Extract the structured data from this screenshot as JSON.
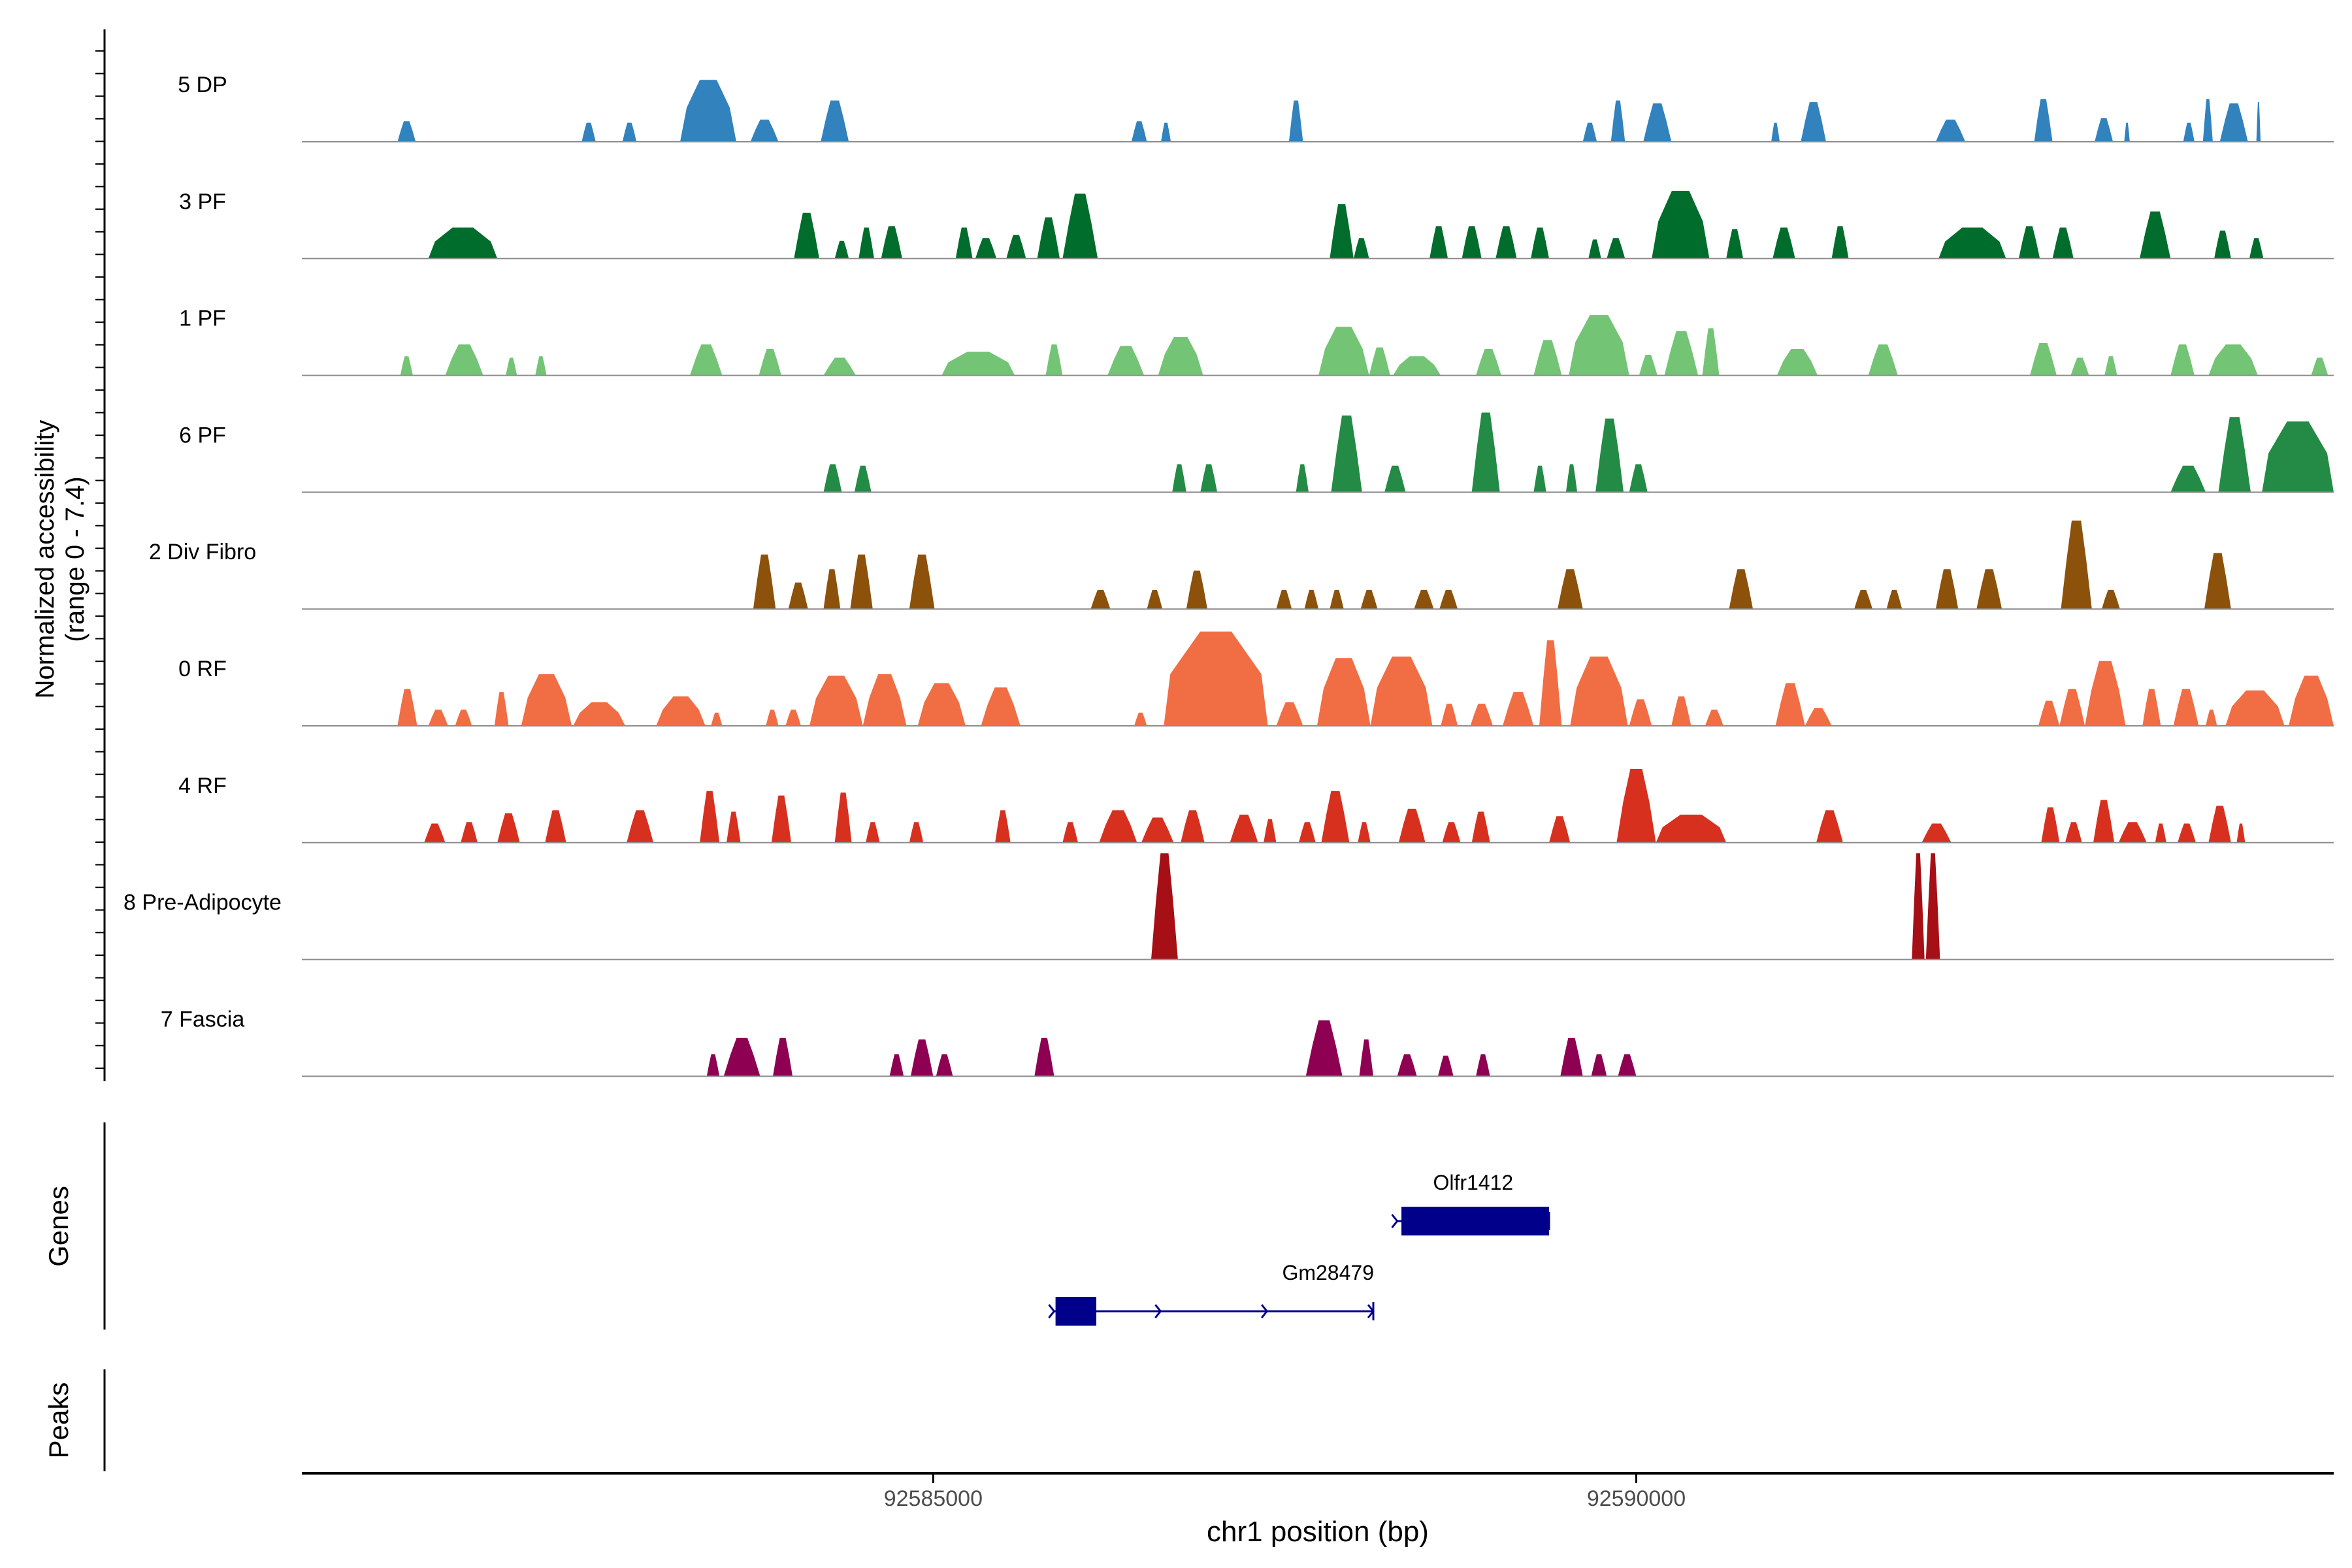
{
  "chart_data": {
    "type": "area",
    "title": "",
    "y_axis_label_line1": "Normalized accessibility",
    "y_axis_label_line2": "(range 0 - 7.4)",
    "ylim": [
      0,
      7.4
    ],
    "xlabel": "chr1 position (bp)",
    "x_ticks": [
      {
        "value": 92585000,
        "label": "92585000"
      },
      {
        "value": 92590000,
        "label": "92590000"
      }
    ],
    "xlim": [
      92580510,
      92594960
    ],
    "genes_panel_label": "Genes",
    "peaks_panel_label": "Peaks",
    "tracks": [
      {
        "name": "5 DP",
        "color": "#3182bd",
        "peaks": [
          [
            92581190,
            92581320,
            1.4
          ],
          [
            92582500,
            92582600,
            1.3
          ],
          [
            92582790,
            92582890,
            1.3
          ],
          [
            92583200,
            92583600,
            4.2
          ],
          [
            92583700,
            92583900,
            1.5
          ],
          [
            92584200,
            92584400,
            2.8
          ],
          [
            92586410,
            92586520,
            1.4
          ],
          [
            92586620,
            92586690,
            1.3
          ],
          [
            92587530,
            92587630,
            2.8
          ],
          [
            92589620,
            92589720,
            1.3
          ],
          [
            92589820,
            92589920,
            2.8
          ],
          [
            92590050,
            92590250,
            2.6
          ],
          [
            92590960,
            92591020,
            1.3
          ],
          [
            92591170,
            92591350,
            2.7
          ],
          [
            92592130,
            92592340,
            1.5
          ],
          [
            92592830,
            92592960,
            2.9
          ],
          [
            92593260,
            92593390,
            1.6
          ],
          [
            92593470,
            92593510,
            1.3
          ],
          [
            92593890,
            92593970,
            1.3
          ],
          [
            92594030,
            92594100,
            2.9
          ],
          [
            92594150,
            92594350,
            2.6
          ],
          [
            92594410,
            92594440,
            2.7
          ]
        ]
      },
      {
        "name": "3 PF",
        "color": "#006d2c",
        "peaks": [
          [
            92581410,
            92581900,
            2.1
          ],
          [
            92584010,
            92584190,
            3.1
          ],
          [
            92584300,
            92584400,
            1.2
          ],
          [
            92584470,
            92584580,
            2.1
          ],
          [
            92584630,
            92584780,
            2.2
          ],
          [
            92585160,
            92585280,
            2.1
          ],
          [
            92585300,
            92585450,
            1.4
          ],
          [
            92585520,
            92585660,
            1.6
          ],
          [
            92585740,
            92585900,
            2.8
          ],
          [
            92585920,
            92586170,
            4.4
          ],
          [
            92587820,
            92587990,
            3.7
          ],
          [
            92587990,
            92588100,
            1.4
          ],
          [
            92588530,
            92588660,
            2.2
          ],
          [
            92588760,
            92588900,
            2.2
          ],
          [
            92589000,
            92589150,
            2.2
          ],
          [
            92589250,
            92589380,
            2.1
          ],
          [
            92589660,
            92589750,
            1.3
          ],
          [
            92589790,
            92589920,
            1.4
          ],
          [
            92590110,
            92590520,
            4.6
          ],
          [
            92590640,
            92590760,
            2.0
          ],
          [
            92590970,
            92591130,
            2.1
          ],
          [
            92591390,
            92591510,
            2.2
          ],
          [
            92592150,
            92592630,
            2.1
          ],
          [
            92592720,
            92592870,
            2.2
          ],
          [
            92592960,
            92593110,
            2.1
          ],
          [
            92593580,
            92593800,
            3.2
          ],
          [
            92594110,
            92594230,
            1.9
          ],
          [
            92594360,
            92594460,
            1.4
          ]
        ]
      },
      {
        "name": "1 PF",
        "color": "#74c476",
        "peaks": [
          [
            92581210,
            92581300,
            1.3
          ],
          [
            92581530,
            92581800,
            2.1
          ],
          [
            92581960,
            92582040,
            1.2
          ],
          [
            92582170,
            92582250,
            1.3
          ],
          [
            92583270,
            92583500,
            2.1
          ],
          [
            92583760,
            92583920,
            1.8
          ],
          [
            92584220,
            92584450,
            1.2
          ],
          [
            92585060,
            92585580,
            1.6
          ],
          [
            92585800,
            92585920,
            2.1
          ],
          [
            92586240,
            92586500,
            2.0
          ],
          [
            92586600,
            92586920,
            2.6
          ],
          [
            92587740,
            92588100,
            3.3
          ],
          [
            92588100,
            92588250,
            1.9
          ],
          [
            92588270,
            92588610,
            1.3
          ],
          [
            92588860,
            92589040,
            1.8
          ],
          [
            92589270,
            92589470,
            2.4
          ],
          [
            92589520,
            92589950,
            4.1
          ],
          [
            92590020,
            92590150,
            1.4
          ],
          [
            92590200,
            92590440,
            3.0
          ],
          [
            92590470,
            92590590,
            3.2
          ],
          [
            92591000,
            92591290,
            1.8
          ],
          [
            92591650,
            92591860,
            2.1
          ],
          [
            92592800,
            92592990,
            2.2
          ],
          [
            92593090,
            92593220,
            1.2
          ],
          [
            92593330,
            92593420,
            1.3
          ],
          [
            92593800,
            92593970,
            2.1
          ],
          [
            92594070,
            92594420,
            2.1
          ],
          [
            92594800,
            92594920,
            1.2
          ]
        ]
      },
      {
        "name": "6 PF",
        "color": "#238b45",
        "peaks": [
          [
            92584220,
            92584350,
            1.9
          ],
          [
            92584440,
            92584560,
            1.8
          ],
          [
            92586700,
            92586800,
            1.9
          ],
          [
            92586900,
            92587020,
            1.9
          ],
          [
            92587580,
            92587670,
            1.9
          ],
          [
            92587830,
            92588050,
            5.2
          ],
          [
            92588210,
            92588360,
            1.8
          ],
          [
            92588830,
            92589030,
            5.4
          ],
          [
            92589270,
            92589360,
            1.8
          ],
          [
            92589500,
            92589580,
            1.9
          ],
          [
            92589710,
            92589910,
            5.0
          ],
          [
            92589950,
            92590080,
            1.9
          ],
          [
            92593800,
            92594050,
            1.8
          ],
          [
            92594140,
            92594370,
            5.1
          ],
          [
            92594450,
            92594960,
            4.8
          ]
        ]
      },
      {
        "name": "2 Div Fibro",
        "color": "#8c510a",
        "peaks": [
          [
            92583720,
            92583880,
            3.7
          ],
          [
            92583970,
            92584110,
            1.8
          ],
          [
            92584220,
            92584340,
            2.7
          ],
          [
            92584410,
            92584570,
            3.7
          ],
          [
            92584830,
            92585010,
            3.7
          ],
          [
            92586120,
            92586260,
            1.3
          ],
          [
            92586520,
            92586630,
            1.3
          ],
          [
            92586800,
            92586950,
            2.6
          ],
          [
            92587440,
            92587550,
            1.3
          ],
          [
            92587640,
            92587740,
            1.3
          ],
          [
            92587820,
            92587920,
            1.3
          ],
          [
            92588040,
            92588160,
            1.3
          ],
          [
            92588420,
            92588560,
            1.3
          ],
          [
            92588600,
            92588730,
            1.3
          ],
          [
            92589440,
            92589620,
            2.7
          ],
          [
            92590660,
            92590830,
            2.7
          ],
          [
            92591550,
            92591680,
            1.3
          ],
          [
            92591780,
            92591890,
            1.3
          ],
          [
            92592130,
            92592290,
            2.7
          ],
          [
            92592420,
            92592600,
            2.7
          ],
          [
            92593020,
            92593240,
            6.0
          ],
          [
            92593310,
            92593440,
            1.3
          ],
          [
            92594040,
            92594230,
            3.8
          ]
        ]
      },
      {
        "name": "0 RF",
        "color": "#f16d44",
        "peaks": [
          [
            92581190,
            92581330,
            2.5
          ],
          [
            92581410,
            92581550,
            1.1
          ],
          [
            92581600,
            92581720,
            1.1
          ],
          [
            92581880,
            92581980,
            2.3
          ],
          [
            92582070,
            92582430,
            3.5
          ],
          [
            92582440,
            92582810,
            1.6
          ],
          [
            92583030,
            92583380,
            2.0
          ],
          [
            92583420,
            92583500,
            0.9
          ],
          [
            92583810,
            92583900,
            1.1
          ],
          [
            92583950,
            92584060,
            1.1
          ],
          [
            92584120,
            92584500,
            3.4
          ],
          [
            92584500,
            92584810,
            3.5
          ],
          [
            92584890,
            92585230,
            2.9
          ],
          [
            92585340,
            92585620,
            2.6
          ],
          [
            92586430,
            92586520,
            0.9
          ],
          [
            92586640,
            92587380,
            6.4
          ],
          [
            92587440,
            92587630,
            1.6
          ],
          [
            92587730,
            92588110,
            4.6
          ],
          [
            92588110,
            92588550,
            4.7
          ],
          [
            92588610,
            92588730,
            1.5
          ],
          [
            92588820,
            92588980,
            1.5
          ],
          [
            92589050,
            92589270,
            2.3
          ],
          [
            92589310,
            92589470,
            5.8
          ],
          [
            92589530,
            92589940,
            4.7
          ],
          [
            92589950,
            92590110,
            1.8
          ],
          [
            92590250,
            92590390,
            2.0
          ],
          [
            92590490,
            92590620,
            1.1
          ],
          [
            92590990,
            92591200,
            2.9
          ],
          [
            92591200,
            92591390,
            1.2
          ],
          [
            92592860,
            92593010,
            1.7
          ],
          [
            92593010,
            92593190,
            2.5
          ],
          [
            92593190,
            92593480,
            4.4
          ],
          [
            92593600,
            92593730,
            2.5
          ],
          [
            92593820,
            92594000,
            2.5
          ],
          [
            92594050,
            92594130,
            1.1
          ],
          [
            92594190,
            92594610,
            2.4
          ],
          [
            92594640,
            92594960,
            3.4
          ]
        ]
      },
      {
        "name": "4 RF",
        "color": "#d7301f",
        "peaks": [
          [
            92581380,
            92581530,
            1.3
          ],
          [
            92581640,
            92581760,
            1.4
          ],
          [
            92581900,
            92582060,
            2.0
          ],
          [
            92582240,
            92582390,
            2.2
          ],
          [
            92582820,
            92583010,
            2.2
          ],
          [
            92583340,
            92583480,
            3.5
          ],
          [
            92583530,
            92583630,
            2.1
          ],
          [
            92583850,
            92583990,
            3.2
          ],
          [
            92584300,
            92584420,
            3.4
          ],
          [
            92584520,
            92584620,
            1.4
          ],
          [
            92584830,
            92584930,
            1.4
          ],
          [
            92585440,
            92585550,
            2.2
          ],
          [
            92585920,
            92586030,
            1.4
          ],
          [
            92586180,
            92586450,
            2.2
          ],
          [
            92586480,
            92586710,
            1.7
          ],
          [
            92586760,
            92586930,
            2.2
          ],
          [
            92587110,
            92587310,
            1.9
          ],
          [
            92587350,
            92587440,
            1.6
          ],
          [
            92587600,
            92587720,
            1.4
          ],
          [
            92587760,
            92587960,
            3.5
          ],
          [
            92588020,
            92588110,
            1.4
          ],
          [
            92588310,
            92588500,
            2.3
          ],
          [
            92588620,
            92588750,
            1.4
          ],
          [
            92588830,
            92588960,
            2.1
          ],
          [
            92589380,
            92589530,
            1.8
          ],
          [
            92589860,
            92590140,
            5.0
          ],
          [
            92590140,
            92590640,
            1.9
          ],
          [
            92591280,
            92591470,
            2.2
          ],
          [
            92592030,
            92592240,
            1.3
          ],
          [
            92592880,
            92593010,
            2.4
          ],
          [
            92593050,
            92593170,
            1.4
          ],
          [
            92593250,
            92593400,
            2.9
          ],
          [
            92593430,
            92593630,
            1.4
          ],
          [
            92593690,
            92593770,
            1.3
          ],
          [
            92593850,
            92593980,
            1.3
          ],
          [
            92594070,
            92594230,
            2.5
          ],
          [
            92594270,
            92594330,
            1.3
          ]
        ]
      },
      {
        "name": "8 Pre-Adipocyte",
        "color": "#a50f15",
        "peaks": [
          [
            92586550,
            92586740,
            7.2
          ],
          [
            92591960,
            92592050,
            7.2
          ],
          [
            92592060,
            92592160,
            7.2
          ]
        ]
      },
      {
        "name": "7 Fascia",
        "color": "#8e0152",
        "peaks": [
          [
            92583390,
            92583480,
            1.5
          ],
          [
            92583510,
            92583770,
            2.6
          ],
          [
            92583860,
            92584000,
            2.6
          ],
          [
            92584690,
            92584790,
            1.5
          ],
          [
            92584840,
            92585000,
            2.5
          ],
          [
            92585020,
            92585140,
            1.5
          ],
          [
            92585720,
            92585860,
            2.6
          ],
          [
            92587650,
            92587910,
            3.8
          ],
          [
            92588030,
            92588130,
            2.5
          ],
          [
            92588300,
            92588440,
            1.5
          ],
          [
            92588590,
            92588700,
            1.4
          ],
          [
            92588860,
            92588960,
            1.5
          ],
          [
            92589460,
            92589620,
            2.6
          ],
          [
            92589680,
            92589790,
            1.5
          ],
          [
            92589870,
            92590000,
            1.5
          ]
        ]
      }
    ],
    "genes": [
      {
        "name": "Olfr1412",
        "start": 92588300,
        "end": 92589380,
        "strand": "+",
        "exons": [
          [
            92588330,
            92589380
          ]
        ],
        "row": 0
      },
      {
        "name": "Gm28479",
        "start": 92585860,
        "end": 92588130,
        "strand": "+",
        "exons": [
          [
            92585870,
            92586160
          ]
        ],
        "row": 1
      }
    ],
    "peaks_track": []
  }
}
